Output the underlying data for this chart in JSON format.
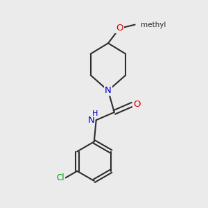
{
  "background_color": "#ebebeb",
  "bond_color": "#2d2d2d",
  "atom_colors": {
    "N": "#0000cc",
    "O": "#dd0000",
    "Cl": "#009900",
    "C": "#2d2d2d"
  },
  "line_width": 1.5,
  "font_size": 8.5,
  "figsize": [
    3.0,
    3.0
  ],
  "dpi": 100,
  "xlim": [
    0,
    10
  ],
  "ylim": [
    0,
    10
  ]
}
